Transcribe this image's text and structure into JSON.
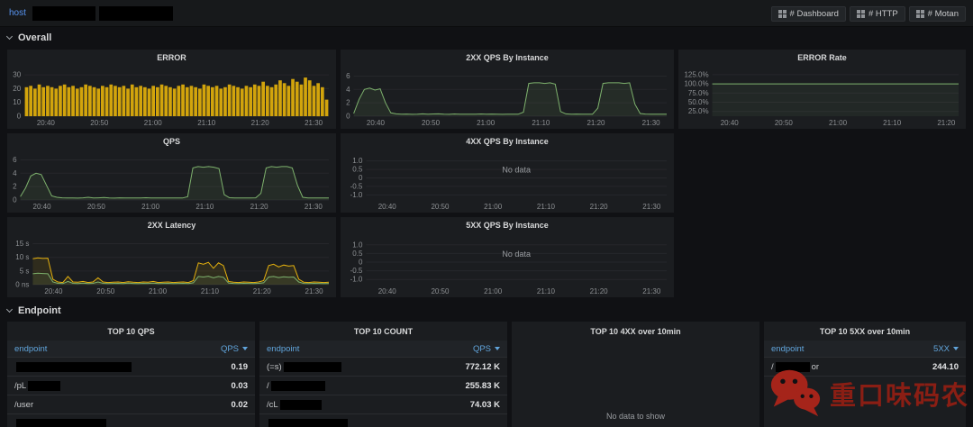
{
  "topbar": {
    "host_label": "host",
    "buttons": [
      {
        "label": "# Dashboard"
      },
      {
        "label": "# HTTP"
      },
      {
        "label": "# Motan"
      }
    ]
  },
  "sections": {
    "overall": "Overall",
    "endpoint": "Endpoint"
  },
  "watermark": {
    "text": "重口味码农"
  },
  "chart_data": {
    "error": {
      "type": "bar",
      "title": "ERROR",
      "ymin": 0,
      "ymax": 32,
      "y_ticks": [
        {
          "v": 30,
          "label": "30"
        },
        {
          "v": 20,
          "label": "20"
        },
        {
          "v": 10,
          "label": "10"
        },
        {
          "v": 0,
          "label": "0"
        }
      ],
      "x_ticks": [
        "20:40",
        "20:50",
        "21:00",
        "21:10",
        "21:20",
        "21:30"
      ],
      "series": [
        {
          "color": "#d2a40c",
          "values": [
            21,
            22,
            20,
            23,
            21,
            22,
            21,
            20,
            22,
            23,
            21,
            22,
            20,
            21,
            23,
            22,
            21,
            20,
            22,
            21,
            23,
            22,
            21,
            22,
            20,
            23,
            21,
            22,
            21,
            20,
            22,
            21,
            23,
            22,
            21,
            20,
            22,
            23,
            21,
            22,
            21,
            20,
            23,
            22,
            21,
            22,
            20,
            21,
            23,
            22,
            21,
            20,
            22,
            21,
            23,
            22,
            25,
            22,
            21,
            23,
            26,
            24,
            22,
            27,
            25,
            23,
            28,
            26,
            22,
            24,
            21,
            12
          ]
        }
      ]
    },
    "qps_2xx": {
      "type": "line",
      "title": "2XX QPS By Instance",
      "ymin": 0,
      "ymax": 6.6,
      "y_ticks": [
        {
          "v": 6,
          "label": "6"
        },
        {
          "v": 4,
          "label": "4"
        },
        {
          "v": 2,
          "label": "2"
        },
        {
          "v": 0,
          "label": "0"
        }
      ],
      "x_ticks": [
        "20:40",
        "20:50",
        "21:00",
        "21:10",
        "21:20",
        "21:30"
      ],
      "series": [
        {
          "color": "#7eb26d",
          "fill": "rgba(126,178,109,0.10)",
          "values": [
            0.4,
            2.5,
            4.0,
            4.2,
            3.9,
            4.1,
            2.0,
            0.5,
            0.35,
            0.3,
            0.32,
            0.28,
            0.3,
            0.35,
            0.3,
            0.33,
            0.35,
            0.3,
            0.28,
            0.33,
            0.3,
            0.31,
            0.29,
            0.3,
            0.34,
            0.3,
            0.32,
            0.3,
            0.28,
            0.31,
            0.3,
            0.3,
            0.6,
            4.9,
            5.0,
            5.0,
            4.9,
            5.0,
            4.8,
            0.7,
            0.35,
            0.3,
            0.32,
            0.3,
            0.31,
            0.3,
            1.2,
            4.9,
            5.0,
            5.0,
            5.0,
            4.9,
            5.0,
            1.8,
            0.4,
            0.32,
            0.3,
            0.31,
            0.3,
            0.3
          ]
        }
      ]
    },
    "error_rate": {
      "type": "line",
      "title": "ERROR Rate",
      "ymin": 12,
      "ymax": 132,
      "y_ticks": [
        {
          "v": 125,
          "label": "125.0%"
        },
        {
          "v": 100,
          "label": "100.0%"
        },
        {
          "v": 75,
          "label": "75.0%"
        },
        {
          "v": 50,
          "label": "50.0%"
        },
        {
          "v": 25,
          "label": "25.0%"
        }
      ],
      "x_ticks": [
        "20:40",
        "20:50",
        "21:00",
        "21:10",
        "21:20"
      ],
      "series": [
        {
          "color": "#7eb26d",
          "fill": "rgba(126,178,109,0.08)",
          "values": [
            100,
            100,
            100,
            100,
            100,
            100,
            100,
            100,
            100,
            100,
            100,
            100,
            100,
            100,
            100,
            100,
            100,
            100,
            100,
            100,
            100,
            100,
            100,
            100,
            100,
            100,
            100,
            100,
            100,
            100,
            100,
            100,
            100,
            100,
            100,
            100,
            100,
            100,
            100,
            100
          ]
        }
      ]
    },
    "qps": {
      "type": "line",
      "title": "QPS",
      "ymin": 0,
      "ymax": 6.6,
      "y_ticks": [
        {
          "v": 6,
          "label": "6"
        },
        {
          "v": 4,
          "label": "4"
        },
        {
          "v": 2,
          "label": "2"
        },
        {
          "v": 0,
          "label": "0"
        }
      ],
      "x_ticks": [
        "20:40",
        "20:50",
        "21:00",
        "21:10",
        "21:20",
        "21:30"
      ],
      "series": [
        {
          "color": "#7eb26d",
          "fill": "rgba(126,178,109,0.10)",
          "values": [
            0.5,
            1.8,
            3.6,
            4.0,
            3.8,
            2.2,
            0.6,
            0.4,
            0.32,
            0.3,
            0.3,
            0.28,
            0.32,
            0.4,
            0.3,
            0.32,
            0.36,
            0.3,
            0.28,
            0.32,
            0.3,
            0.3,
            0.29,
            0.31,
            0.33,
            0.3,
            0.31,
            0.3,
            0.29,
            0.3,
            0.31,
            0.3,
            0.5,
            4.8,
            5.0,
            4.9,
            5.0,
            4.9,
            4.7,
            0.8,
            0.34,
            0.3,
            0.31,
            0.3,
            0.3,
            0.32,
            1.0,
            4.8,
            5.0,
            4.9,
            5.0,
            5.0,
            4.8,
            2.2,
            0.4,
            0.31,
            0.3,
            0.3,
            0.31,
            0.3
          ]
        }
      ]
    },
    "qps_4xx": {
      "type": "line",
      "title": "4XX QPS By Instance",
      "no_data": "No data",
      "ymin": -1.3,
      "ymax": 1.3,
      "y_ticks": [
        {
          "v": 1,
          "label": "1.0"
        },
        {
          "v": 0.5,
          "label": "0.5"
        },
        {
          "v": 0,
          "label": "0"
        },
        {
          "v": -0.5,
          "label": "-0.5"
        },
        {
          "v": -1,
          "label": "-1.0"
        }
      ],
      "x_ticks": [
        "20:40",
        "20:50",
        "21:00",
        "21:10",
        "21:20",
        "21:30"
      ],
      "series": []
    },
    "latency_2xx": {
      "type": "line",
      "title": "2XX Latency",
      "ymin": 0,
      "ymax": 16.5,
      "y_ticks": [
        {
          "v": 15,
          "label": "15 s"
        },
        {
          "v": 10,
          "label": "10 s"
        },
        {
          "v": 5,
          "label": "5 s"
        },
        {
          "v": 0,
          "label": "0 ns"
        }
      ],
      "x_ticks": [
        "20:40",
        "20:50",
        "21:00",
        "21:10",
        "21:20",
        "21:30"
      ],
      "series": [
        {
          "color": "#e5b10e",
          "fill": "rgba(229,177,14,0.10)",
          "values": [
            9.5,
            9.8,
            9.6,
            9.7,
            2.0,
            1.0,
            0.8,
            3.0,
            1.0,
            0.9,
            1.2,
            0.8,
            1.0,
            2.5,
            1.0,
            0.8,
            0.9,
            1.0,
            0.8,
            1.1,
            0.9,
            0.8,
            1.0,
            0.9,
            1.2,
            0.8,
            0.9,
            1.0,
            0.8,
            0.9,
            1.0,
            0.8,
            1.5,
            8.0,
            7.5,
            8.2,
            6.0,
            8.0,
            7.0,
            1.2,
            0.9,
            0.8,
            1.0,
            0.9,
            0.8,
            1.0,
            1.5,
            7.0,
            7.5,
            6.5,
            7.2,
            6.8,
            7.0,
            2.0,
            0.9,
            0.8,
            1.0,
            0.9,
            0.8,
            0.9
          ]
        },
        {
          "color": "#7eb26d",
          "fill": "rgba(126,178,109,0.10)",
          "values": [
            4.0,
            4.2,
            4.1,
            4.0,
            1.0,
            0.5,
            0.4,
            1.2,
            0.5,
            0.4,
            0.6,
            0.4,
            0.5,
            1.0,
            0.5,
            0.4,
            0.45,
            0.5,
            0.4,
            0.55,
            0.45,
            0.4,
            0.5,
            0.45,
            0.6,
            0.4,
            0.45,
            0.5,
            0.4,
            0.45,
            0.5,
            0.4,
            0.7,
            3.0,
            2.8,
            3.1,
            2.5,
            3.0,
            2.7,
            0.6,
            0.45,
            0.4,
            0.5,
            0.45,
            0.4,
            0.5,
            0.7,
            2.8,
            3.0,
            2.6,
            2.9,
            2.7,
            2.8,
            1.0,
            0.45,
            0.4,
            0.5,
            0.45,
            0.4,
            0.45
          ]
        }
      ]
    },
    "qps_5xx": {
      "type": "line",
      "title": "5XX QPS By Instance",
      "no_data": "No data",
      "ymin": -1.3,
      "ymax": 1.3,
      "y_ticks": [
        {
          "v": 1,
          "label": "1.0"
        },
        {
          "v": 0.5,
          "label": "0.5"
        },
        {
          "v": 0,
          "label": "0"
        },
        {
          "v": -0.5,
          "label": "-0.5"
        },
        {
          "v": -1,
          "label": "-1.0"
        }
      ],
      "x_ticks": [
        "20:40",
        "20:50",
        "21:00",
        "21:10",
        "21:20",
        "21:30"
      ],
      "series": []
    }
  },
  "tables": [
    {
      "title": "TOP 10 QPS",
      "col_endpoint": "endpoint",
      "col_value": "QPS",
      "rows": [
        {
          "pre": "",
          "value": "0.19"
        },
        {
          "pre": "/pL",
          "value": "0.03"
        },
        {
          "pre": "/user",
          "value": "0.02"
        },
        {
          "pre": "",
          "value": ""
        }
      ]
    },
    {
      "title": "TOP 10 COUNT",
      "col_endpoint": "endpoint",
      "col_value": "QPS",
      "rows": [
        {
          "pre": "(=s)",
          "value": "772.12 K"
        },
        {
          "pre": "/",
          "value": "255.83 K"
        },
        {
          "pre": "/cL",
          "value": "74.03 K"
        },
        {
          "pre": "",
          "value": ""
        }
      ]
    },
    {
      "title": "TOP 10 4XX over 10min",
      "no_data": "No data to show"
    },
    {
      "title": "TOP 10 5XX over 10min",
      "col_endpoint": "endpoint",
      "col_value": "5XX",
      "rows": [
        {
          "pre": "/",
          "post": "or",
          "value": "244.10"
        }
      ]
    }
  ]
}
